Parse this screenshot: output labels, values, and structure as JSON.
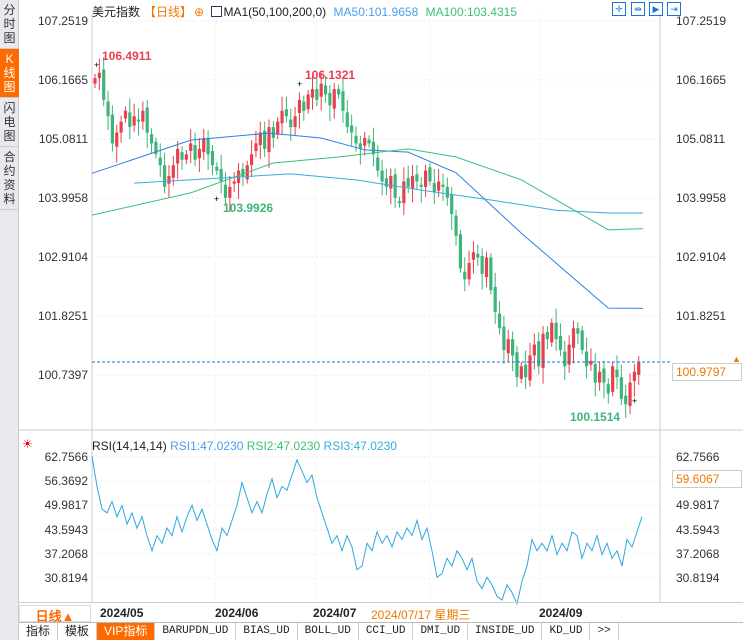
{
  "sidebar": [
    {
      "label": "分时图"
    },
    {
      "label": "K线图",
      "active": true
    },
    {
      "label": "闪电图"
    },
    {
      "label": "合约资料"
    }
  ],
  "header": {
    "name": "美元指数",
    "period": "【日线】",
    "ma_title": "MA1(50,100,200,0)",
    "ma50": "MA50:101.9658",
    "ma100": "MA100:103.4315"
  },
  "toolbar_icons": [
    "crosshair-icon",
    "zoom-in-icon",
    "play-icon",
    "exit-icon"
  ],
  "price_axis": [
    "107.2519",
    "106.1665",
    "105.0811",
    "103.9958",
    "102.9104",
    "101.8251",
    "100.7397"
  ],
  "price_axis_values": [
    107.2519,
    106.1665,
    105.0811,
    103.9958,
    102.9104,
    101.8251,
    100.7397
  ],
  "current_price": "100.9797",
  "current_price_value": 100.9797,
  "annotations": {
    "high1": "106.4911",
    "high2": "106.1321",
    "low1": "103.9926",
    "low2": "100.1514"
  },
  "colors": {
    "up": "#e8404f",
    "down": "#3db57a",
    "ma50": "#2a82e4",
    "ma100": "#3dbf7a",
    "ma200": "#35aee0",
    "rsi": "#2fa8e0",
    "accent": "#ff6a00"
  },
  "closes": [
    106.2,
    106.3,
    105.8,
    105.5,
    105.0,
    105.2,
    105.4,
    105.6,
    105.3,
    105.5,
    105.4,
    105.6,
    105.2,
    105.0,
    104.8,
    104.6,
    104.2,
    104.4,
    104.6,
    104.9,
    104.7,
    104.8,
    105.0,
    104.7,
    104.9,
    105.1,
    104.8,
    104.6,
    104.5,
    104.3,
    104.0,
    104.2,
    104.3,
    104.5,
    104.4,
    104.6,
    104.8,
    105.0,
    105.2,
    104.9,
    105.3,
    105.1,
    105.4,
    105.6,
    105.5,
    105.3,
    105.5,
    105.8,
    105.6,
    105.9,
    106.0,
    105.8,
    106.1,
    105.9,
    105.7,
    106.0,
    105.9,
    105.6,
    105.3,
    105.2,
    105.0,
    104.9,
    105.1,
    105.0,
    104.8,
    104.5,
    104.3,
    104.2,
    104.4,
    104.0,
    103.9,
    104.3,
    104.2,
    104.4,
    104.3,
    104.2,
    104.5,
    104.3,
    104.1,
    104.3,
    104.2,
    104.0,
    103.7,
    103.3,
    102.7,
    102.5,
    102.8,
    103.0,
    102.9,
    102.6,
    102.9,
    102.3,
    101.9,
    101.6,
    101.2,
    101.4,
    101.1,
    100.7,
    100.9,
    100.7,
    101.1,
    101.3,
    100.9,
    101.5,
    101.4,
    101.7,
    101.4,
    101.2,
    100.9,
    101.3,
    101.6,
    101.5,
    101.2,
    100.9,
    101.0,
    100.6,
    100.8,
    100.6,
    100.4,
    100.9,
    100.7,
    100.3,
    100.2,
    100.6,
    100.8,
    100.98
  ],
  "ma": {
    "ma50": [
      [
        -1,
        104.45
      ],
      [
        22,
        105.06
      ],
      [
        40,
        105.19
      ],
      [
        52,
        105.1
      ],
      [
        62,
        104.88
      ],
      [
        72,
        104.84
      ],
      [
        83,
        104.46
      ],
      [
        98,
        103.35
      ],
      [
        118,
        101.97
      ],
      [
        126,
        101.9658
      ]
    ],
    "ma100": [
      [
        -1,
        103.68
      ],
      [
        22,
        104.09
      ],
      [
        41,
        104.64
      ],
      [
        56,
        104.75
      ],
      [
        72,
        104.9
      ],
      [
        83,
        104.75
      ],
      [
        98,
        104.33
      ],
      [
        118,
        103.41
      ],
      [
        126,
        103.4315
      ]
    ],
    "ma200": [
      [
        9,
        104.27
      ],
      [
        45,
        104.44
      ],
      [
        60,
        104.33
      ],
      [
        75,
        104.14
      ],
      [
        91,
        103.96
      ],
      [
        106,
        103.77
      ],
      [
        118,
        103.72
      ],
      [
        126,
        103.72
      ]
    ]
  },
  "rsi": {
    "title": "RSI(14,14,14)",
    "rsi1": "RSI1:47.0230",
    "rsi2": "RSI2:47.0230",
    "rsi3": "RSI3:47.0230",
    "current": "59.6067",
    "axis": [
      "62.7566",
      "56.3692",
      "49.9817",
      "43.5943",
      "37.2068",
      "30.8194"
    ],
    "axis_values": [
      62.7566,
      56.3692,
      49.9817,
      43.5943,
      37.2068,
      30.8194
    ],
    "values": [
      63,
      55,
      49,
      48,
      51,
      47,
      50,
      45,
      48,
      44,
      47,
      42,
      38,
      42,
      40,
      44,
      42,
      47,
      43,
      47,
      50,
      46,
      49,
      45,
      41,
      38,
      44,
      42,
      46,
      50,
      56,
      52,
      48,
      51,
      48,
      53,
      57,
      52,
      55,
      54,
      58,
      62,
      59,
      56,
      58,
      52,
      48,
      44,
      40,
      42,
      38,
      42,
      39,
      33,
      34,
      40,
      38,
      43,
      40,
      42,
      39,
      43,
      41,
      44,
      42,
      46,
      41,
      44,
      38,
      31,
      32,
      36,
      34,
      38,
      36,
      33,
      36,
      30,
      28,
      31,
      29,
      26,
      25,
      29,
      27,
      24,
      30,
      34,
      41,
      38,
      40,
      38,
      42,
      37,
      40,
      38,
      43,
      42,
      36,
      40,
      38,
      42,
      37,
      40,
      36,
      38,
      34,
      41,
      39,
      43,
      47
    ]
  },
  "dates": {
    "period": "日线▲",
    "labels": [
      "2024/05",
      "2024/06",
      "2024/07",
      "2024/09"
    ],
    "cursor": "2024/07/17 星期三"
  },
  "tabs": [
    "指标",
    "模板",
    "VIP指标",
    "BARUPDN_UD",
    "BIAS_UD",
    "BOLL_UD",
    "CCI_UD",
    "DMI_UD",
    "INSIDE_UD",
    "KD_UD",
    ">>"
  ]
}
